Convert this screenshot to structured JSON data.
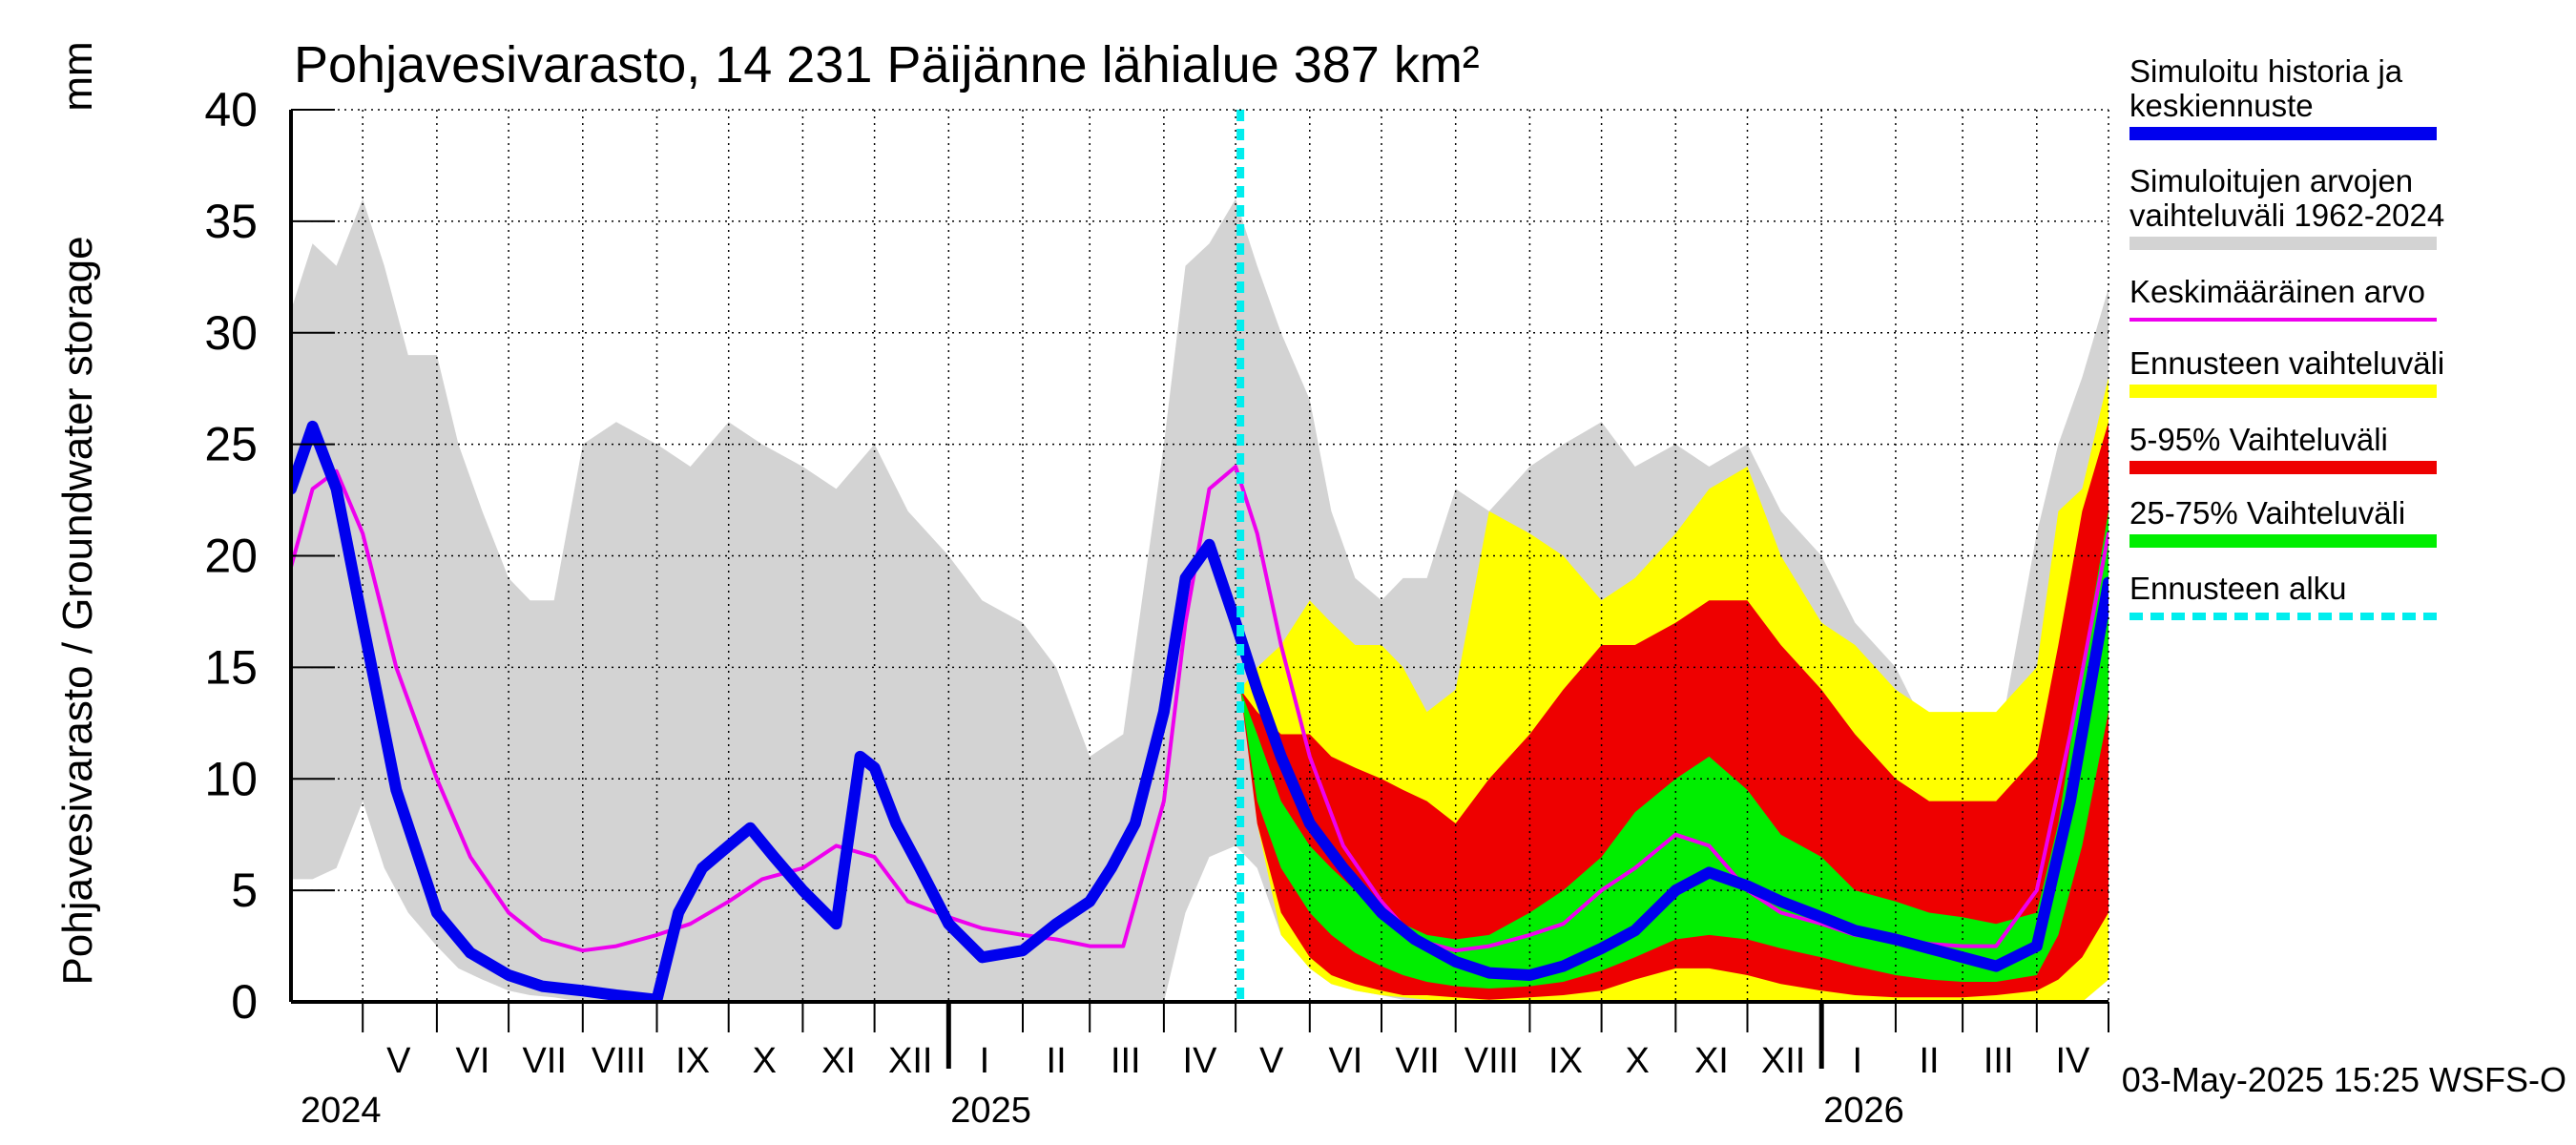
{
  "chart_data": {
    "type": "area",
    "title": "Pohjavesivarasto, 14 231 Päijänne lähialue 387 km²",
    "ylabel": "Pohjavesivarasto / Groundwater storage",
    "yunit": "mm",
    "ylim": [
      0,
      40
    ],
    "yticks": [
      0,
      5,
      10,
      15,
      20,
      25,
      30,
      35,
      40
    ],
    "xlim": [
      "2024-04-01",
      "2026-05-01"
    ],
    "grid": true,
    "legend_position": "right",
    "forecast_start": "2025-05-03",
    "month_labels": [
      {
        "label": "V",
        "date": "2024-05-16"
      },
      {
        "label": "VI",
        "date": "2024-06-16"
      },
      {
        "label": "VII",
        "date": "2024-07-16"
      },
      {
        "label": "VIII",
        "date": "2024-08-16"
      },
      {
        "label": "IX",
        "date": "2024-09-16"
      },
      {
        "label": "X",
        "date": "2024-10-16"
      },
      {
        "label": "XI",
        "date": "2024-11-16"
      },
      {
        "label": "XII",
        "date": "2024-12-16"
      },
      {
        "label": "I",
        "date": "2025-01-16"
      },
      {
        "label": "II",
        "date": "2025-02-15"
      },
      {
        "label": "III",
        "date": "2025-03-16"
      },
      {
        "label": "IV",
        "date": "2025-04-16"
      },
      {
        "label": "V",
        "date": "2025-05-16"
      },
      {
        "label": "VI",
        "date": "2025-06-16"
      },
      {
        "label": "VII",
        "date": "2025-07-16"
      },
      {
        "label": "VIII",
        "date": "2025-08-16"
      },
      {
        "label": "IX",
        "date": "2025-09-16"
      },
      {
        "label": "X",
        "date": "2025-10-16"
      },
      {
        "label": "XI",
        "date": "2025-11-16"
      },
      {
        "label": "XII",
        "date": "2025-12-16"
      },
      {
        "label": "I",
        "date": "2026-01-16"
      },
      {
        "label": "II",
        "date": "2026-02-15"
      },
      {
        "label": "III",
        "date": "2026-03-16"
      },
      {
        "label": "IV",
        "date": "2026-04-16"
      }
    ],
    "year_labels": [
      {
        "label": "2024",
        "date": "2024-04-01"
      },
      {
        "label": "2025",
        "date": "2025-01-01"
      },
      {
        "label": "2026",
        "date": "2026-01-01"
      }
    ],
    "footer": "03-May-2025 15:25 WSFS-O",
    "colors": {
      "history": "#0000ee",
      "range_1962_2024": "#d3d3d3",
      "mean": "#ee00ee",
      "forecast_range": "#ffff00",
      "p5_95": "#ee0000",
      "p25_75": "#00ee00",
      "forecast_start": "#00eeee"
    },
    "legend": [
      {
        "key": "history",
        "label": "Simuloitu historia ja keskiennuste",
        "lines": [
          "Simuloitu historia ja",
          "keskiennuste"
        ]
      },
      {
        "key": "range_1962_2024",
        "label": "Simuloitujen arvojen vaihteluväli 1962-2024",
        "lines": [
          "Simuloitujen arvojen",
          "vaihteluväli 1962-2024"
        ]
      },
      {
        "key": "mean",
        "label": "Keskimääräinen arvo",
        "lines": [
          "Keskimääräinen arvo"
        ]
      },
      {
        "key": "forecast_range",
        "label": "Ennusteen vaihteluväli",
        "lines": [
          "Ennusteen vaihteluväli"
        ]
      },
      {
        "key": "p5_95",
        "label": "5-95% Vaihteluväli",
        "lines": [
          "5-95% Vaihteluväli"
        ]
      },
      {
        "key": "p25_75",
        "label": "25-75% Vaihteluväli",
        "lines": [
          "25-75% Vaihteluväli"
        ]
      },
      {
        "key": "forecast_start",
        "label": "Ennusteen alku",
        "lines": [
          "Ennusteen alku"
        ]
      }
    ],
    "series": [
      {
        "key": "range_1962_2024",
        "type": "band",
        "x": [
          "2024-04-01",
          "2024-04-10",
          "2024-04-20",
          "2024-05-01",
          "2024-05-10",
          "2024-05-20",
          "2024-06-01",
          "2024-06-10",
          "2024-06-20",
          "2024-07-01",
          "2024-07-10",
          "2024-07-20",
          "2024-08-01",
          "2024-08-15",
          "2024-09-01",
          "2024-09-15",
          "2024-10-01",
          "2024-10-15",
          "2024-11-01",
          "2024-11-15",
          "2024-12-01",
          "2024-12-15",
          "2025-01-01",
          "2025-01-15",
          "2025-02-01",
          "2025-02-15",
          "2025-03-01",
          "2025-03-15",
          "2025-04-01",
          "2025-04-10",
          "2025-04-20",
          "2025-05-01",
          "2025-05-10",
          "2025-05-20",
          "2025-06-01",
          "2025-06-10",
          "2025-06-20",
          "2025-07-01",
          "2025-07-10",
          "2025-07-20",
          "2025-08-01",
          "2025-08-15",
          "2025-09-01",
          "2025-09-15",
          "2025-10-01",
          "2025-10-15",
          "2025-11-01",
          "2025-11-15",
          "2025-12-01",
          "2025-12-15",
          "2026-01-01",
          "2026-01-15",
          "2026-02-01",
          "2026-02-15",
          "2026-03-01",
          "2026-03-15",
          "2026-04-01",
          "2026-04-10",
          "2026-04-20",
          "2026-05-01"
        ],
        "lower": [
          5.5,
          5.5,
          6,
          9,
          6,
          4,
          2.5,
          1.5,
          1,
          0.5,
          0.3,
          0.2,
          0,
          0,
          0,
          0,
          0,
          0,
          0,
          0,
          0,
          0,
          0,
          0,
          0,
          0,
          0,
          0,
          0,
          4,
          6.5,
          7,
          6,
          3,
          1.5,
          0.8,
          0.5,
          0.3,
          0.1,
          0,
          0,
          0,
          0,
          0,
          0,
          0,
          0,
          0,
          0,
          0,
          0,
          0,
          0,
          0,
          0,
          0,
          0,
          0,
          0,
          1
        ],
        "upper": [
          31,
          34,
          33,
          36,
          33,
          29,
          29,
          25,
          22,
          19,
          18,
          18,
          25,
          26,
          25,
          24,
          26,
          25,
          24,
          23,
          25,
          22,
          20,
          18,
          17,
          15,
          11,
          12,
          25,
          33,
          34,
          36,
          33,
          30,
          27,
          22,
          19,
          18,
          19,
          19,
          23,
          22,
          24,
          25,
          26,
          24,
          25,
          24,
          25,
          22,
          20,
          17,
          15,
          12,
          10,
          11,
          21,
          25,
          28,
          32
        ]
      },
      {
        "key": "forecast_range",
        "type": "band",
        "x": [
          "2025-05-03",
          "2025-05-10",
          "2025-05-20",
          "2025-06-01",
          "2025-06-10",
          "2025-06-20",
          "2025-07-01",
          "2025-07-10",
          "2025-07-20",
          "2025-08-01",
          "2025-08-15",
          "2025-09-01",
          "2025-09-15",
          "2025-10-01",
          "2025-10-15",
          "2025-11-01",
          "2025-11-15",
          "2025-12-01",
          "2025-12-15",
          "2026-01-01",
          "2026-01-15",
          "2026-02-01",
          "2026-02-15",
          "2026-03-01",
          "2026-03-15",
          "2026-04-01",
          "2026-04-10",
          "2026-04-20",
          "2026-05-01"
        ],
        "lower": [
          14,
          8,
          3,
          1.5,
          0.8,
          0.5,
          0.3,
          0.2,
          0.1,
          0,
          0,
          0,
          0,
          0,
          0,
          0,
          0,
          0,
          0,
          0,
          0,
          0,
          0,
          0,
          0,
          0,
          0,
          0,
          1
        ],
        "upper": [
          14,
          15,
          16,
          18,
          17,
          16,
          16,
          15,
          13,
          14,
          22,
          21,
          20,
          18,
          19,
          21,
          23,
          24,
          20,
          17,
          16,
          14,
          13,
          13,
          13,
          15,
          22,
          23,
          28
        ]
      },
      {
        "key": "p5_95",
        "type": "band",
        "x": [
          "2025-05-03",
          "2025-05-10",
          "2025-05-20",
          "2025-06-01",
          "2025-06-10",
          "2025-06-20",
          "2025-07-01",
          "2025-07-10",
          "2025-07-20",
          "2025-08-01",
          "2025-08-15",
          "2025-09-01",
          "2025-09-15",
          "2025-10-01",
          "2025-10-15",
          "2025-11-01",
          "2025-11-15",
          "2025-12-01",
          "2025-12-15",
          "2026-01-01",
          "2026-01-15",
          "2026-02-01",
          "2026-02-15",
          "2026-03-01",
          "2026-03-15",
          "2026-04-01",
          "2026-04-10",
          "2026-04-20",
          "2026-05-01"
        ],
        "lower": [
          14,
          8,
          4,
          2,
          1.2,
          0.8,
          0.5,
          0.3,
          0.3,
          0.2,
          0.1,
          0.2,
          0.3,
          0.5,
          1,
          1.5,
          1.5,
          1.2,
          0.8,
          0.5,
          0.3,
          0.2,
          0.2,
          0.2,
          0.3,
          0.5,
          1,
          2,
          4
        ],
        "upper": [
          14,
          13,
          12,
          12,
          11,
          10.5,
          10,
          9.5,
          9,
          8,
          10,
          12,
          14,
          16,
          16,
          17,
          18,
          18,
          16,
          14,
          12,
          10,
          9,
          9,
          9,
          11,
          16,
          22,
          26
        ]
      },
      {
        "key": "p25_75",
        "type": "band",
        "x": [
          "2025-05-03",
          "2025-05-10",
          "2025-05-20",
          "2025-06-01",
          "2025-06-10",
          "2025-06-20",
          "2025-07-01",
          "2025-07-10",
          "2025-07-20",
          "2025-08-01",
          "2025-08-15",
          "2025-09-01",
          "2025-09-15",
          "2025-10-01",
          "2025-10-15",
          "2025-11-01",
          "2025-11-15",
          "2025-12-01",
          "2025-12-15",
          "2026-01-01",
          "2026-01-15",
          "2026-02-01",
          "2026-02-15",
          "2026-03-01",
          "2026-03-15",
          "2026-04-01",
          "2026-04-10",
          "2026-04-20",
          "2026-05-01"
        ],
        "lower": [
          14,
          9,
          6,
          4,
          3,
          2.2,
          1.6,
          1.2,
          0.9,
          0.7,
          0.6,
          0.7,
          0.9,
          1.4,
          2,
          2.8,
          3,
          2.8,
          2.4,
          2,
          1.6,
          1.2,
          1,
          0.9,
          0.9,
          1.2,
          3,
          7,
          13
        ],
        "upper": [
          14,
          12,
          9,
          7,
          6,
          5,
          4,
          3.5,
          3,
          2.8,
          3,
          4,
          5,
          6.5,
          8.5,
          10,
          11,
          9.5,
          7.5,
          6.5,
          5,
          4.5,
          4,
          3.8,
          3.5,
          4,
          8,
          15,
          22
        ]
      },
      {
        "key": "mean",
        "type": "line",
        "x": [
          "2024-04-01",
          "2024-04-10",
          "2024-04-20",
          "2024-05-01",
          "2024-05-15",
          "2024-06-01",
          "2024-06-15",
          "2024-07-01",
          "2024-07-15",
          "2024-08-01",
          "2024-08-15",
          "2024-09-01",
          "2024-09-15",
          "2024-10-01",
          "2024-10-15",
          "2024-11-01",
          "2024-11-15",
          "2024-12-01",
          "2024-12-15",
          "2025-01-01",
          "2025-01-15",
          "2025-02-01",
          "2025-02-15",
          "2025-03-01",
          "2025-03-15",
          "2025-04-01",
          "2025-04-10",
          "2025-04-20",
          "2025-05-01",
          "2025-05-10",
          "2025-05-20",
          "2025-06-01",
          "2025-06-15",
          "2025-07-01",
          "2025-07-15",
          "2025-08-01",
          "2025-08-15",
          "2025-09-01",
          "2025-09-15",
          "2025-10-01",
          "2025-10-15",
          "2025-11-01",
          "2025-11-15",
          "2025-12-01",
          "2025-12-15",
          "2026-01-01",
          "2026-01-15",
          "2026-02-01",
          "2026-02-15",
          "2026-03-01",
          "2026-03-15",
          "2026-04-01",
          "2026-04-15",
          "2026-05-01"
        ],
        "values": [
          19.5,
          23,
          23.8,
          21,
          15,
          10,
          6.5,
          4,
          2.8,
          2.3,
          2.5,
          3,
          3.5,
          4.5,
          5.5,
          6,
          7,
          6.5,
          4.5,
          3.8,
          3.3,
          3,
          2.8,
          2.5,
          2.5,
          9,
          17,
          23,
          24,
          21,
          16,
          11,
          7,
          4.5,
          2.8,
          2.3,
          2.5,
          3,
          3.5,
          5,
          6,
          7.5,
          7,
          5,
          4,
          3.5,
          3,
          2.8,
          2.6,
          2.5,
          2.5,
          5,
          12,
          21
        ]
      },
      {
        "key": "history",
        "type": "line",
        "x": [
          "2024-04-01",
          "2024-04-10",
          "2024-04-20",
          "2024-05-01",
          "2024-05-15",
          "2024-06-01",
          "2024-06-15",
          "2024-07-01",
          "2024-07-15",
          "2024-08-01",
          "2024-08-15",
          "2024-09-01",
          "2024-09-10",
          "2024-09-20",
          "2024-10-01",
          "2024-10-10",
          "2024-10-20",
          "2024-11-01",
          "2024-11-15",
          "2024-11-25",
          "2024-12-01",
          "2024-12-10",
          "2024-12-20",
          "2025-01-01",
          "2025-01-15",
          "2025-02-01",
          "2025-02-15",
          "2025-03-01",
          "2025-03-10",
          "2025-03-20",
          "2025-04-01",
          "2025-04-10",
          "2025-04-20",
          "2025-05-01",
          "2025-05-10",
          "2025-05-20",
          "2025-06-01",
          "2025-06-15",
          "2025-07-01",
          "2025-07-15",
          "2025-08-01",
          "2025-08-15",
          "2025-09-01",
          "2025-09-15",
          "2025-10-01",
          "2025-10-15",
          "2025-11-01",
          "2025-11-15",
          "2025-12-01",
          "2025-12-15",
          "2026-01-01",
          "2026-01-15",
          "2026-02-01",
          "2026-02-15",
          "2026-03-01",
          "2026-03-15",
          "2026-04-01",
          "2026-04-15",
          "2026-05-01"
        ],
        "values": [
          23,
          25.8,
          23,
          17,
          9.5,
          4,
          2.2,
          1.2,
          0.7,
          0.5,
          0.3,
          0.1,
          4,
          6,
          7,
          7.8,
          6.5,
          5,
          3.5,
          11,
          10.5,
          8,
          6,
          3.5,
          2,
          2.3,
          3.5,
          4.5,
          6,
          8,
          13,
          19,
          20.5,
          17,
          14,
          11,
          8,
          6,
          4,
          2.8,
          1.8,
          1.3,
          1.2,
          1.6,
          2.4,
          3.2,
          5,
          5.8,
          5.2,
          4.5,
          3.8,
          3.2,
          2.8,
          2.4,
          2,
          1.6,
          2.5,
          9,
          18.8
        ]
      }
    ]
  }
}
